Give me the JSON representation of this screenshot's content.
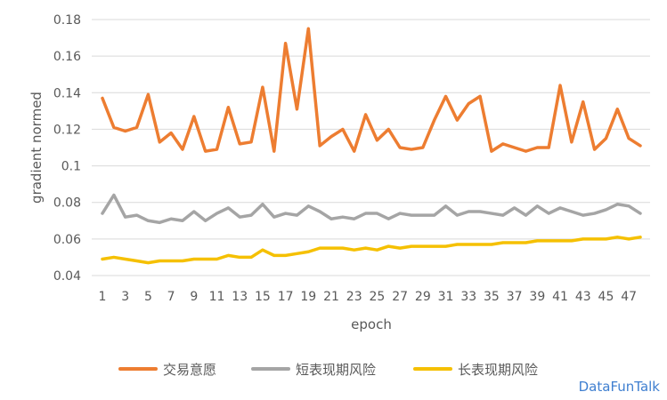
{
  "chart_data": {
    "type": "line",
    "title": "",
    "xlabel": "epoch",
    "ylabel": "gradient normed",
    "ylim": [
      0.04,
      0.18
    ],
    "yticks": [
      "0.04",
      "0.06",
      "0.08",
      "0.1",
      "0.12",
      "0.14",
      "0.16",
      "0.18"
    ],
    "x": [
      1,
      2,
      3,
      4,
      5,
      6,
      7,
      8,
      9,
      10,
      11,
      12,
      13,
      14,
      15,
      16,
      17,
      18,
      19,
      20,
      21,
      22,
      23,
      24,
      25,
      26,
      27,
      28,
      29,
      30,
      31,
      32,
      33,
      34,
      35,
      36,
      37,
      38,
      39,
      40,
      41,
      42,
      43,
      44,
      45,
      46,
      47,
      48
    ],
    "xtick_labels": [
      "1",
      "3",
      "5",
      "7",
      "9",
      "11",
      "13",
      "15",
      "17",
      "19",
      "21",
      "23",
      "25",
      "27",
      "29",
      "31",
      "33",
      "35",
      "37",
      "39",
      "41",
      "43",
      "45",
      "47"
    ],
    "grid": "horizontal",
    "legend_position": "bottom",
    "series": [
      {
        "name": "交易意愿",
        "color": "#ED7D31",
        "values": [
          0.137,
          0.121,
          0.119,
          0.121,
          0.139,
          0.113,
          0.118,
          0.109,
          0.127,
          0.108,
          0.109,
          0.132,
          0.112,
          0.113,
          0.143,
          0.108,
          0.167,
          0.131,
          0.175,
          0.111,
          0.116,
          0.12,
          0.108,
          0.128,
          0.114,
          0.12,
          0.11,
          0.109,
          0.11,
          0.125,
          0.138,
          0.125,
          0.134,
          0.138,
          0.108,
          0.112,
          0.11,
          0.108,
          0.11,
          0.11,
          0.144,
          0.113,
          0.135,
          0.109,
          0.115,
          0.131,
          0.115,
          0.111
        ]
      },
      {
        "name": "短表现期风险",
        "color": "#A5A5A5",
        "values": [
          0.074,
          0.084,
          0.072,
          0.073,
          0.07,
          0.069,
          0.071,
          0.07,
          0.075,
          0.07,
          0.074,
          0.077,
          0.072,
          0.073,
          0.079,
          0.072,
          0.074,
          0.073,
          0.078,
          0.075,
          0.071,
          0.072,
          0.071,
          0.074,
          0.074,
          0.071,
          0.074,
          0.073,
          0.073,
          0.073,
          0.078,
          0.073,
          0.075,
          0.075,
          0.074,
          0.073,
          0.077,
          0.073,
          0.078,
          0.074,
          0.077,
          0.075,
          0.073,
          0.074,
          0.076,
          0.079,
          0.078,
          0.074
        ]
      },
      {
        "name": "长表现期风险",
        "color": "#F5C000",
        "values": [
          0.049,
          0.05,
          0.049,
          0.048,
          0.047,
          0.048,
          0.048,
          0.048,
          0.049,
          0.049,
          0.049,
          0.051,
          0.05,
          0.05,
          0.054,
          0.051,
          0.051,
          0.052,
          0.053,
          0.055,
          0.055,
          0.055,
          0.054,
          0.055,
          0.054,
          0.056,
          0.055,
          0.056,
          0.056,
          0.056,
          0.056,
          0.057,
          0.057,
          0.057,
          0.057,
          0.058,
          0.058,
          0.058,
          0.059,
          0.059,
          0.059,
          0.059,
          0.06,
          0.06,
          0.06,
          0.061,
          0.06,
          0.061
        ]
      }
    ]
  },
  "watermark": "DataFunTalk"
}
